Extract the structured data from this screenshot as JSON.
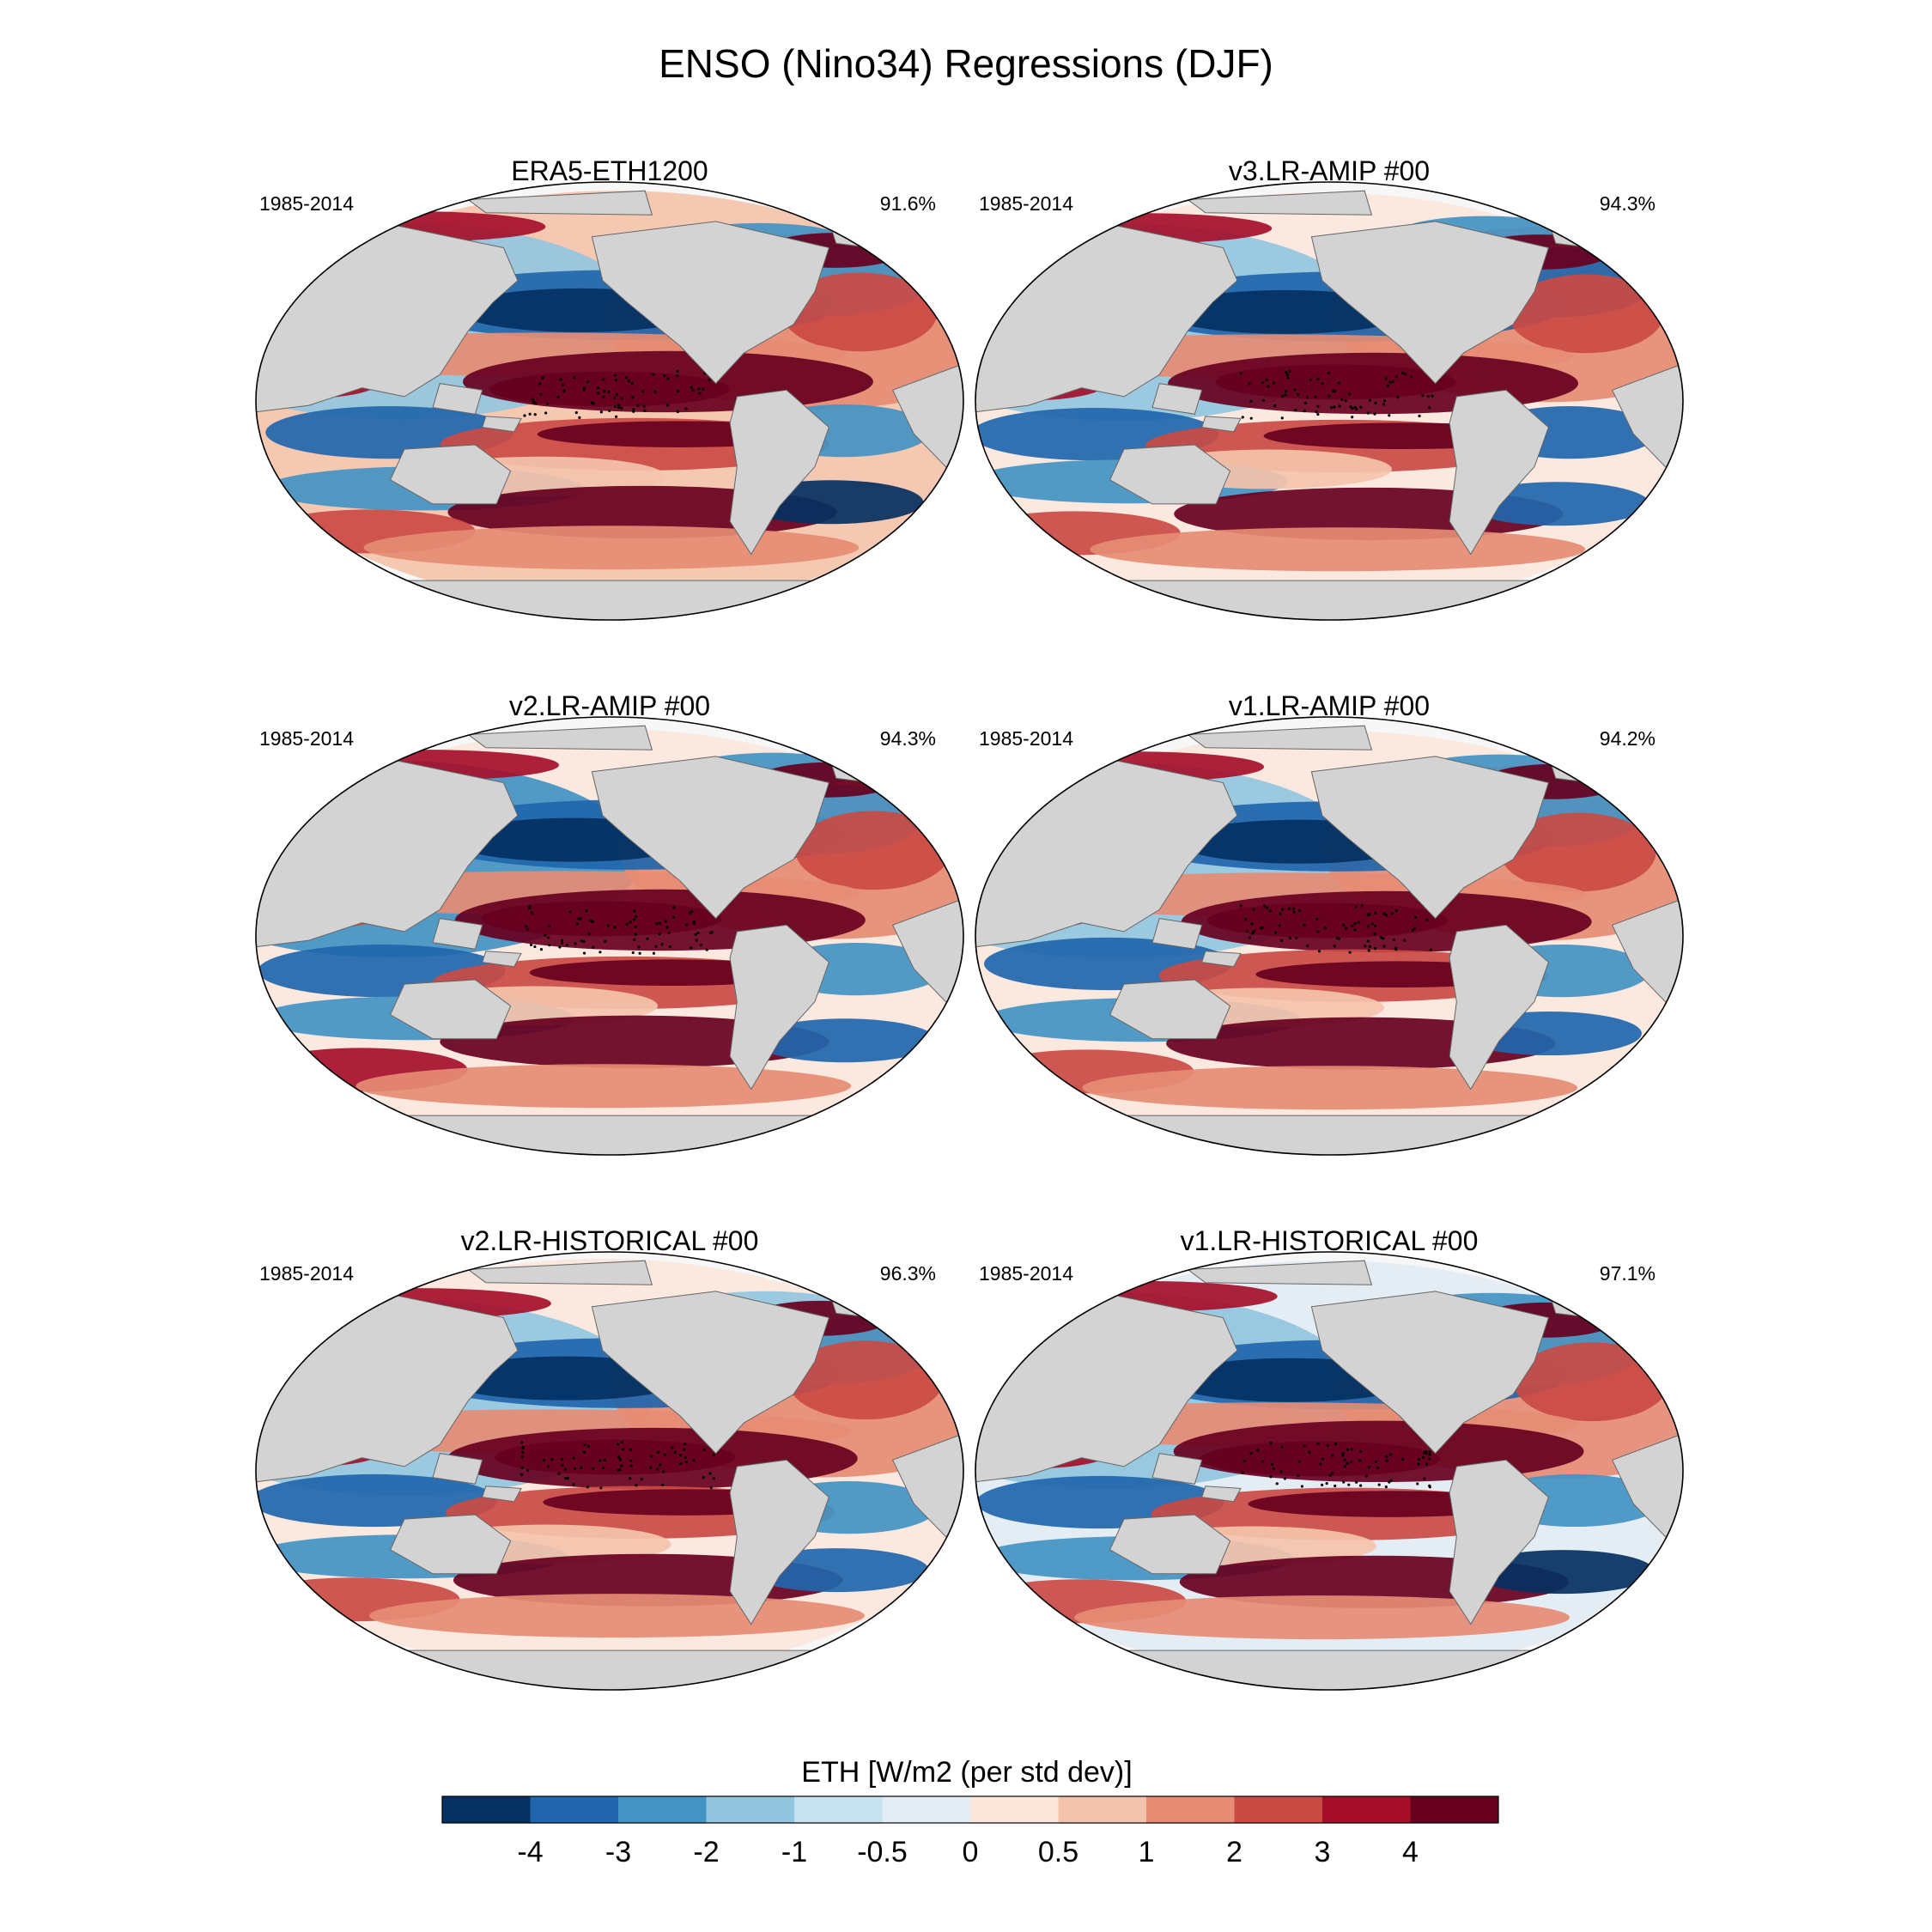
{
  "chart_data": {
    "type": "map-panels",
    "title": "ENSO (Nino34) Regressions (DJF)",
    "projection": "Robinson, Pacific-centred",
    "panels": [
      {
        "title": "ERA5-ETH1200",
        "period": "1985-2014",
        "pattern_pct": "91.6%"
      },
      {
        "title": "v3.LR-AMIP  #00",
        "period": "1985-2014",
        "pattern_pct": "94.3%"
      },
      {
        "title": "v2.LR-AMIP  #00",
        "period": "1985-2014",
        "pattern_pct": "94.3%"
      },
      {
        "title": "v1.LR-AMIP  #00",
        "period": "1985-2014",
        "pattern_pct": "94.2%"
      },
      {
        "title": "v2.LR-HISTORICAL  #00",
        "period": "1985-2014",
        "pattern_pct": "96.3%"
      },
      {
        "title": "v1.LR-HISTORICAL  #00",
        "period": "1985-2014",
        "pattern_pct": "97.1%"
      }
    ],
    "colorbar": {
      "label": "ETH [W/m2 (per std dev)]",
      "ticks": [
        "-4",
        "-3",
        "-2",
        "-1",
        "-0.5",
        "0",
        "0.5",
        "1",
        "2",
        "3",
        "4"
      ],
      "colors": [
        "#053061",
        "#2166ac",
        "#4393c3",
        "#92c5de",
        "#c7e2ef",
        "#e3ecf3",
        "#fbe6dc",
        "#f4c3ab",
        "#e68c74",
        "#ca4a44",
        "#a50f2a",
        "#67001f"
      ]
    },
    "style": {
      "land": "#d3d3d3",
      "ocean_neutral": "#f7f7f7"
    }
  }
}
